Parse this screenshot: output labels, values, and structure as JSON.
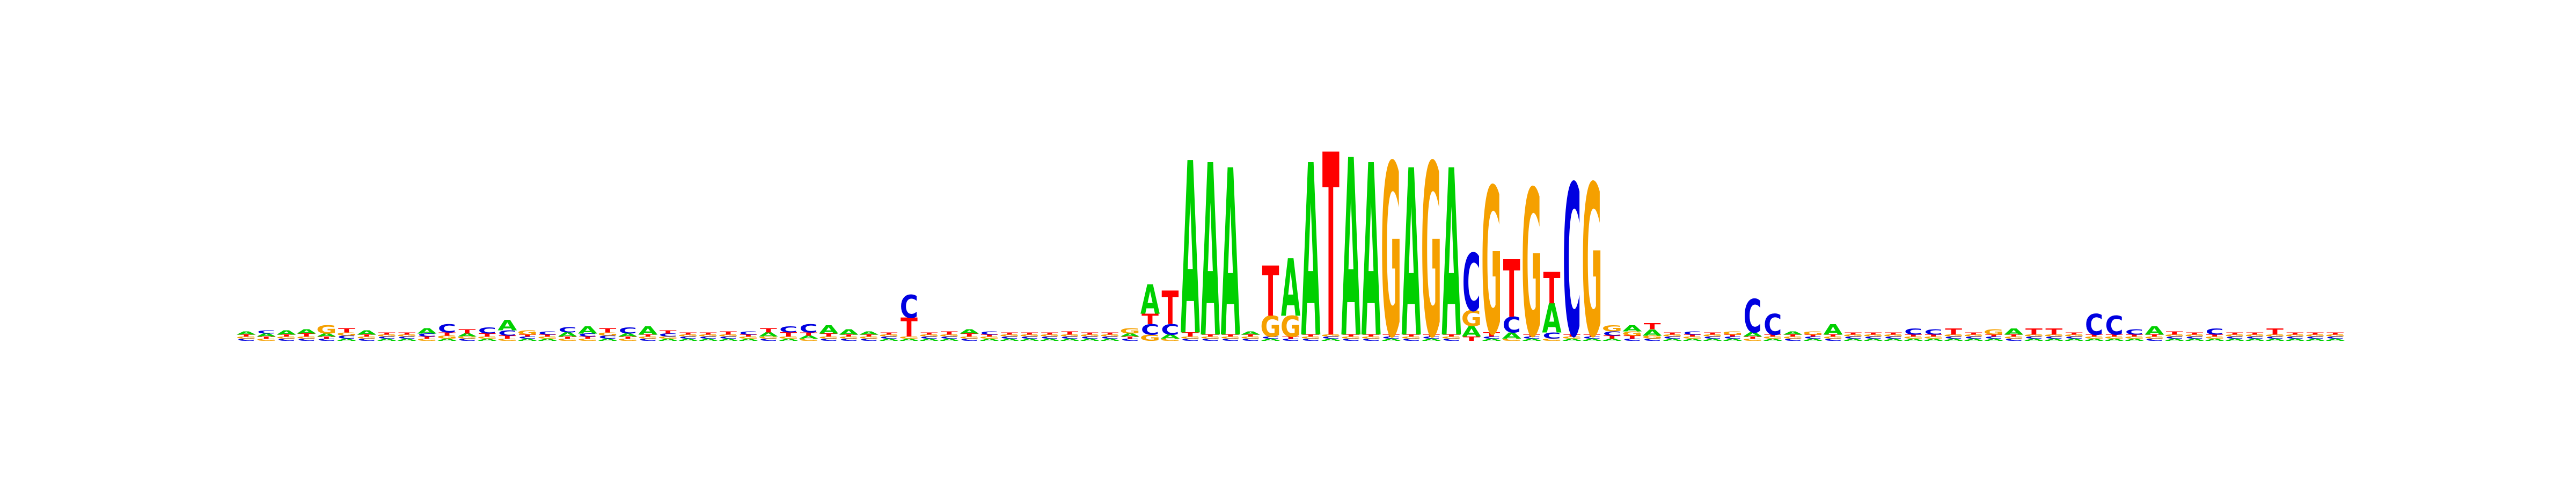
{
  "chart_data": {
    "type": "sequence-logo",
    "title": "",
    "xlabel": "",
    "ylabel": "",
    "alphabet": [
      "A",
      "C",
      "G",
      "T"
    ],
    "colors": {
      "A": "#00d000",
      "C": "#0000e0",
      "G": "#f5a000",
      "T": "#ff0000"
    },
    "ylim": [
      0,
      2
    ],
    "positions": [
      {
        "A": 0.03,
        "C": 0.02,
        "G": 0.02,
        "T": 0.02
      },
      {
        "A": 0.03,
        "C": 0.03,
        "G": 0.02,
        "T": 0.02
      },
      {
        "A": 0.04,
        "C": 0.02,
        "G": 0.02,
        "T": 0.02
      },
      {
        "A": 0.04,
        "C": 0.02,
        "G": 0.02,
        "T": 0.03
      },
      {
        "A": 0.03,
        "C": 0.02,
        "G": 0.08,
        "T": 0.02
      },
      {
        "A": 0.02,
        "C": 0.03,
        "G": 0.03,
        "T": 0.04
      },
      {
        "A": 0.04,
        "C": 0.02,
        "G": 0.02,
        "T": 0.02
      },
      {
        "A": 0.02,
        "C": 0.02,
        "G": 0.02,
        "T": 0.02
      },
      {
        "A": 0.02,
        "C": 0.02,
        "G": 0.02,
        "T": 0.02
      },
      {
        "A": 0.05,
        "C": 0.03,
        "G": 0.02,
        "T": 0.02
      },
      {
        "A": 0.02,
        "C": 0.08,
        "G": 0.03,
        "T": 0.03
      },
      {
        "A": 0.03,
        "C": 0.02,
        "G": 0.02,
        "T": 0.04
      },
      {
        "A": 0.02,
        "C": 0.06,
        "G": 0.02,
        "T": 0.03
      },
      {
        "A": 0.1,
        "C": 0.05,
        "G": 0.02,
        "T": 0.03
      },
      {
        "A": 0.02,
        "C": 0.02,
        "G": 0.04,
        "T": 0.02
      },
      {
        "A": 0.02,
        "C": 0.03,
        "G": 0.02,
        "T": 0.02
      },
      {
        "A": 0.04,
        "C": 0.05,
        "G": 0.02,
        "T": 0.02
      },
      {
        "A": 0.07,
        "C": 0.03,
        "G": 0.02,
        "T": 0.02
      },
      {
        "A": 0.02,
        "C": 0.03,
        "G": 0.03,
        "T": 0.04
      },
      {
        "A": 0.03,
        "C": 0.06,
        "G": 0.02,
        "T": 0.02
      },
      {
        "A": 0.08,
        "C": 0.02,
        "G": 0.02,
        "T": 0.02
      },
      {
        "A": 0.02,
        "C": 0.03,
        "G": 0.02,
        "T": 0.03
      },
      {
        "A": 0.02,
        "C": 0.02,
        "G": 0.02,
        "T": 0.02
      },
      {
        "A": 0.02,
        "C": 0.02,
        "G": 0.02,
        "T": 0.02
      },
      {
        "A": 0.02,
        "C": 0.02,
        "G": 0.02,
        "T": 0.03
      },
      {
        "A": 0.02,
        "C": 0.03,
        "G": 0.02,
        "T": 0.02
      },
      {
        "A": 0.04,
        "C": 0.02,
        "G": 0.02,
        "T": 0.04
      },
      {
        "A": 0.02,
        "C": 0.06,
        "G": 0.02,
        "T": 0.04
      },
      {
        "A": 0.03,
        "C": 0.08,
        "G": 0.02,
        "T": 0.03
      },
      {
        "A": 0.08,
        "C": 0.02,
        "G": 0.02,
        "T": 0.03
      },
      {
        "A": 0.05,
        "C": 0.02,
        "G": 0.02,
        "T": 0.02
      },
      {
        "A": 0.03,
        "C": 0.02,
        "G": 0.02,
        "T": 0.02
      },
      {
        "A": 0.02,
        "C": 0.02,
        "G": 0.02,
        "T": 0.02
      },
      {
        "A": 0.02,
        "C": 0.22,
        "G": 0.02,
        "T": 0.18
      },
      {
        "A": 0.02,
        "C": 0.02,
        "G": 0.02,
        "T": 0.02
      },
      {
        "A": 0.02,
        "C": 0.02,
        "G": 0.02,
        "T": 0.03
      },
      {
        "A": 0.04,
        "C": 0.02,
        "G": 0.02,
        "T": 0.03
      },
      {
        "A": 0.02,
        "C": 0.03,
        "G": 0.02,
        "T": 0.02
      },
      {
        "A": 0.02,
        "C": 0.02,
        "G": 0.02,
        "T": 0.02
      },
      {
        "A": 0.02,
        "C": 0.02,
        "G": 0.02,
        "T": 0.02
      },
      {
        "A": 0.02,
        "C": 0.02,
        "G": 0.02,
        "T": 0.02
      },
      {
        "A": 0.02,
        "C": 0.02,
        "G": 0.02,
        "T": 0.03
      },
      {
        "A": 0.02,
        "C": 0.02,
        "G": 0.02,
        "T": 0.02
      },
      {
        "A": 0.02,
        "C": 0.02,
        "G": 0.02,
        "T": 0.02
      },
      {
        "A": 0.03,
        "C": 0.02,
        "G": 0.05,
        "T": 0.02
      },
      {
        "A": 0.28,
        "C": 0.1,
        "G": 0.06,
        "T": 0.1
      },
      {
        "A": 0.04,
        "C": 0.1,
        "G": 0.02,
        "T": 0.32
      },
      {
        "A": 1.65,
        "C": 0.02,
        "G": 0.02,
        "T": 0.04
      },
      {
        "A": 1.65,
        "C": 0.02,
        "G": 0.02,
        "T": 0.02
      },
      {
        "A": 1.6,
        "C": 0.02,
        "G": 0.02,
        "T": 0.02
      },
      {
        "A": 0.03,
        "C": 0.02,
        "G": 0.02,
        "T": 0.02
      },
      {
        "A": 0.02,
        "C": 0.02,
        "G": 0.2,
        "T": 0.48
      },
      {
        "A": 0.55,
        "C": 0.02,
        "G": 0.2,
        "T": 0.02
      },
      {
        "A": 1.65,
        "C": 0.02,
        "G": 0.02,
        "T": 0.02
      },
      {
        "A": 0.02,
        "C": 0.02,
        "G": 0.02,
        "T": 1.75
      },
      {
        "A": 1.7,
        "C": 0.02,
        "G": 0.02,
        "T": 0.02
      },
      {
        "A": 1.65,
        "C": 0.02,
        "G": 0.02,
        "T": 0.02
      },
      {
        "A": 0.02,
        "C": 0.02,
        "G": 1.65,
        "T": 0.02
      },
      {
        "A": 1.6,
        "C": 0.02,
        "G": 0.02,
        "T": 0.02
      },
      {
        "A": 0.02,
        "C": 0.02,
        "G": 1.65,
        "T": 0.02
      },
      {
        "A": 1.6,
        "C": 0.02,
        "G": 0.02,
        "T": 0.02
      },
      {
        "A": 0.1,
        "C": 0.55,
        "G": 0.15,
        "T": 0.04
      },
      {
        "A": 0.02,
        "C": 0.02,
        "G": 1.4,
        "T": 0.04
      },
      {
        "A": 0.06,
        "C": 0.15,
        "G": 0.02,
        "T": 0.55
      },
      {
        "A": 0.02,
        "C": 0.02,
        "G": 1.4,
        "T": 0.02
      },
      {
        "A": 0.28,
        "C": 0.06,
        "G": 0.02,
        "T": 0.3
      },
      {
        "A": 0.02,
        "C": 1.45,
        "G": 0.02,
        "T": 0.02
      },
      {
        "A": 0.02,
        "C": 0.02,
        "G": 1.45,
        "T": 0.02
      },
      {
        "A": 0.02,
        "C": 0.04,
        "G": 0.06,
        "T": 0.03
      },
      {
        "A": 0.06,
        "C": 0.02,
        "G": 0.04,
        "T": 0.03
      },
      {
        "A": 0.06,
        "C": 0.02,
        "G": 0.03,
        "T": 0.06
      },
      {
        "A": 0.02,
        "C": 0.02,
        "G": 0.02,
        "T": 0.02
      },
      {
        "A": 0.02,
        "C": 0.03,
        "G": 0.02,
        "T": 0.02
      },
      {
        "A": 0.02,
        "C": 0.02,
        "G": 0.02,
        "T": 0.02
      },
      {
        "A": 0.02,
        "C": 0.02,
        "G": 0.03,
        "T": 0.02
      },
      {
        "A": 0.04,
        "C": 0.32,
        "G": 0.02,
        "T": 0.02
      },
      {
        "A": 0.02,
        "C": 0.2,
        "G": 0.02,
        "T": 0.02
      },
      {
        "A": 0.03,
        "C": 0.02,
        "G": 0.02,
        "T": 0.02
      },
      {
        "A": 0.02,
        "C": 0.02,
        "G": 0.03,
        "T": 0.02
      },
      {
        "A": 0.1,
        "C": 0.02,
        "G": 0.02,
        "T": 0.02
      },
      {
        "A": 0.02,
        "C": 0.02,
        "G": 0.02,
        "T": 0.02
      },
      {
        "A": 0.02,
        "C": 0.02,
        "G": 0.02,
        "T": 0.02
      },
      {
        "A": 0.02,
        "C": 0.02,
        "G": 0.02,
        "T": 0.02
      },
      {
        "A": 0.02,
        "C": 0.06,
        "G": 0.02,
        "T": 0.02
      },
      {
        "A": 0.02,
        "C": 0.05,
        "G": 0.02,
        "T": 0.02
      },
      {
        "A": 0.02,
        "C": 0.02,
        "G": 0.02,
        "T": 0.06
      },
      {
        "A": 0.02,
        "C": 0.02,
        "G": 0.02,
        "T": 0.02
      },
      {
        "A": 0.02,
        "C": 0.02,
        "G": 0.05,
        "T": 0.02
      },
      {
        "A": 0.06,
        "C": 0.02,
        "G": 0.02,
        "T": 0.02
      },
      {
        "A": 0.02,
        "C": 0.02,
        "G": 0.02,
        "T": 0.06
      },
      {
        "A": 0.02,
        "C": 0.02,
        "G": 0.02,
        "T": 0.06
      },
      {
        "A": 0.02,
        "C": 0.02,
        "G": 0.02,
        "T": 0.02
      },
      {
        "A": 0.02,
        "C": 0.2,
        "G": 0.02,
        "T": 0.02
      },
      {
        "A": 0.02,
        "C": 0.18,
        "G": 0.02,
        "T": 0.02
      },
      {
        "A": 0.02,
        "C": 0.05,
        "G": 0.02,
        "T": 0.02
      },
      {
        "A": 0.08,
        "C": 0.02,
        "G": 0.02,
        "T": 0.02
      },
      {
        "A": 0.02,
        "C": 0.02,
        "G": 0.02,
        "T": 0.03
      },
      {
        "A": 0.02,
        "C": 0.02,
        "G": 0.02,
        "T": 0.02
      },
      {
        "A": 0.02,
        "C": 0.06,
        "G": 0.02,
        "T": 0.02
      },
      {
        "A": 0.02,
        "C": 0.02,
        "G": 0.02,
        "T": 0.02
      },
      {
        "A": 0.02,
        "C": 0.02,
        "G": 0.02,
        "T": 0.02
      },
      {
        "A": 0.02,
        "C": 0.02,
        "G": 0.02,
        "T": 0.06
      },
      {
        "A": 0.02,
        "C": 0.02,
        "G": 0.02,
        "T": 0.02
      },
      {
        "A": 0.02,
        "C": 0.02,
        "G": 0.02,
        "T": 0.02
      },
      {
        "A": 0.02,
        "C": 0.02,
        "G": 0.02,
        "T": 0.02
      }
    ]
  }
}
